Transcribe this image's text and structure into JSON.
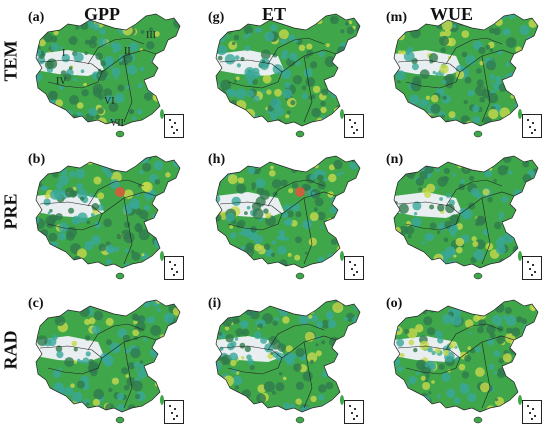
{
  "columns": [
    {
      "label": "GPP",
      "left": 0
    },
    {
      "label": "ET"
    },
    {
      "label": "WUE"
    }
  ],
  "rows": [
    {
      "label": "TEM"
    },
    {
      "label": "PRE"
    },
    {
      "label": "RAD"
    }
  ],
  "panels": [
    {
      "label": "(a)",
      "regions": [
        "I",
        "II",
        "III",
        "IV",
        "VI",
        "VII"
      ]
    },
    {
      "label": "(g)"
    },
    {
      "label": "(m)"
    },
    {
      "label": "(b)"
    },
    {
      "label": "(h)"
    },
    {
      "label": "(n)"
    },
    {
      "label": "(c)"
    },
    {
      "label": "(i)"
    },
    {
      "label": "(o)"
    }
  ],
  "colors": {
    "dark_green": "#2f7a4c",
    "green": "#3fa64a",
    "teal": "#3aa79a",
    "yellow_green": "#c7d94a",
    "pale": "#e9eef0",
    "boundary": "#222222",
    "red_spot": "#e4553a"
  }
}
